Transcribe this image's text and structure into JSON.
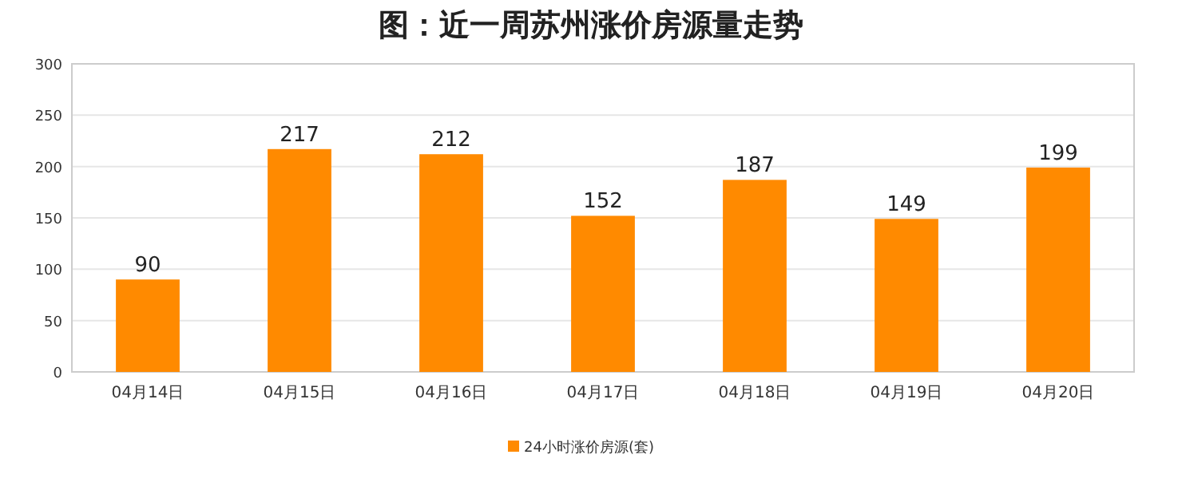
{
  "chart_data": {
    "type": "bar",
    "title": "图：近一周苏州涨价房源量走势",
    "categories": [
      "04月14日",
      "04月15日",
      "04月16日",
      "04月17日",
      "04月18日",
      "04月19日",
      "04月20日"
    ],
    "series": [
      {
        "name": "24小时涨价房源(套)",
        "color": "#ff8a00",
        "values": [
          90,
          217,
          212,
          152,
          187,
          149,
          199
        ]
      }
    ],
    "ylim": [
      0,
      300
    ],
    "yticks": [
      0,
      50,
      100,
      150,
      200,
      250,
      300
    ],
    "grid": "y",
    "legend": "bottom",
    "data_labels": true
  }
}
